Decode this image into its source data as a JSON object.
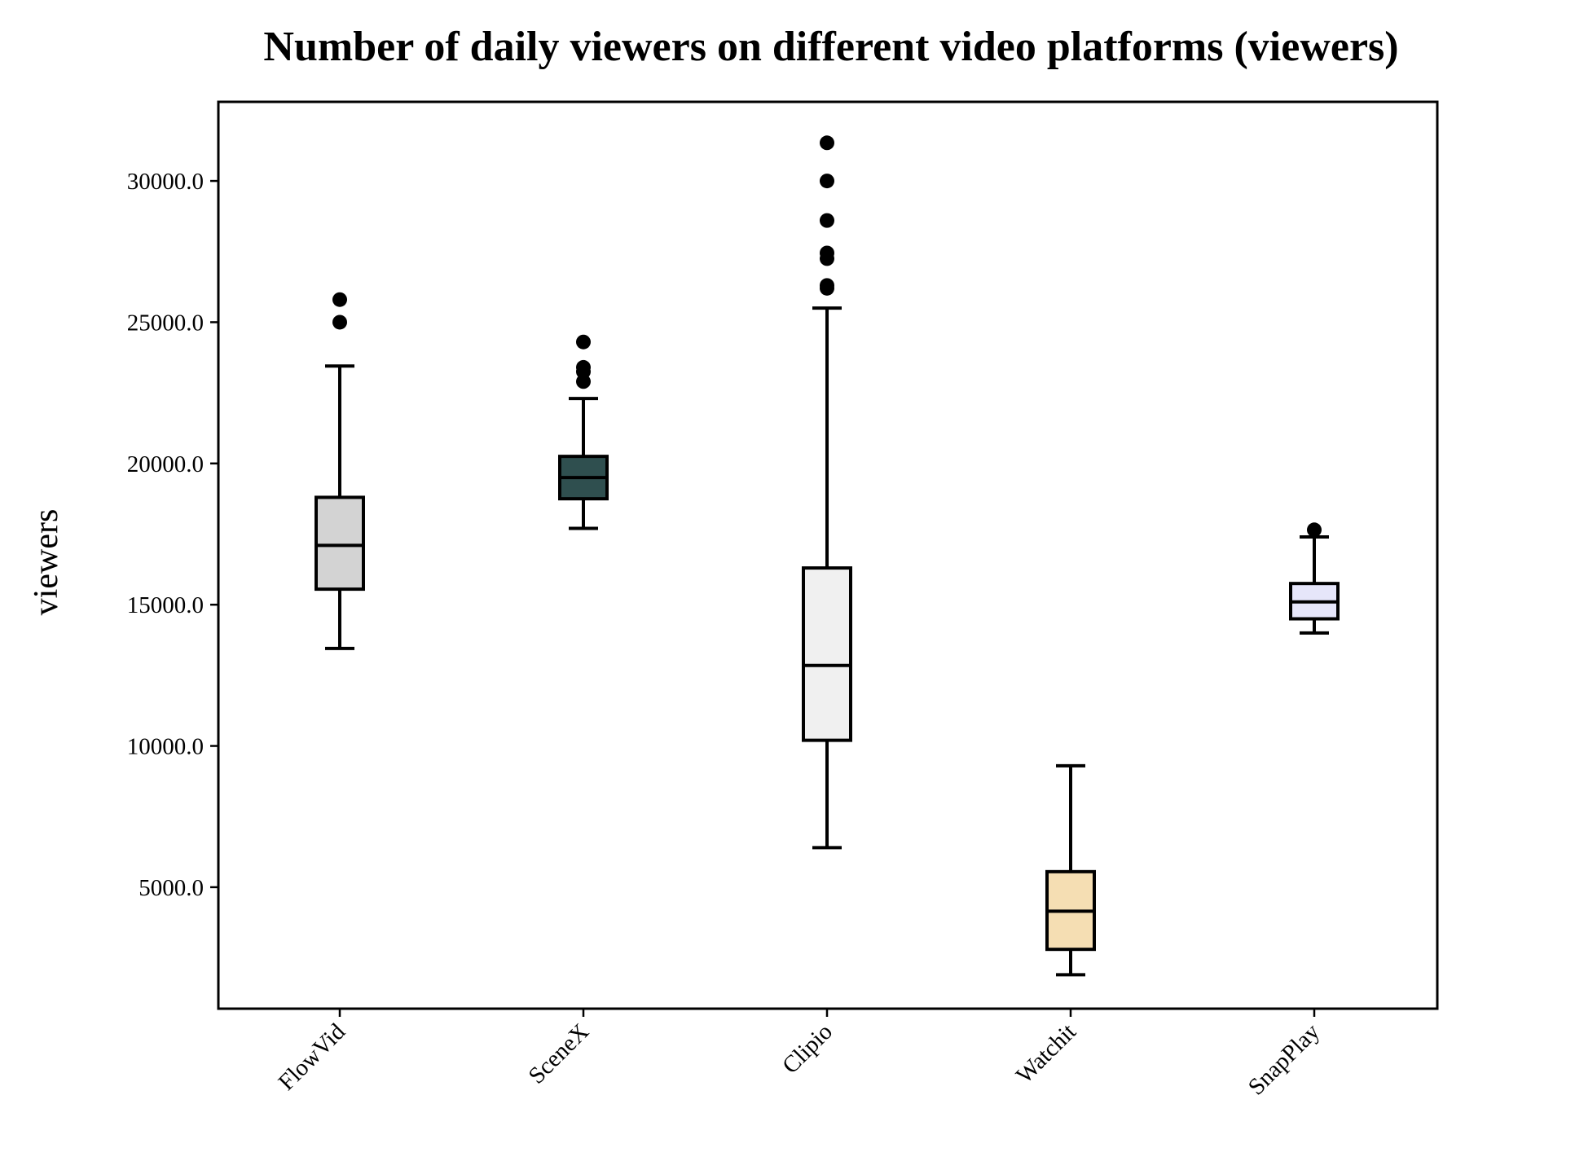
{
  "chart_data": {
    "type": "box",
    "title": "Number of daily viewers on different video platforms (viewers)",
    "xlabel": "",
    "ylabel": "viewers",
    "ylim": [
      700,
      32800
    ],
    "yticks": [
      5000,
      10000,
      15000,
      20000,
      25000,
      30000
    ],
    "ytick_labels": [
      "5000.0",
      "10000.0",
      "15000.0",
      "20000.0",
      "25000.0",
      "30000.0"
    ],
    "grid": false,
    "categories": [
      "FlowVid",
      "SceneX",
      "Clipio",
      "Watchit",
      "SnapPlay"
    ],
    "boxes": [
      {
        "name": "FlowVid",
        "color": "#d3d3d3",
        "whisker_low": 13450,
        "q1": 15550,
        "median": 17100,
        "q3": 18800,
        "whisker_high": 23450,
        "outliers": [
          25000,
          25800
        ]
      },
      {
        "name": "SceneX",
        "color": "#2f4f4f",
        "whisker_low": 17700,
        "q1": 18750,
        "median": 19500,
        "q3": 20250,
        "whisker_high": 22300,
        "outliers": [
          22900,
          23250,
          23400,
          24300
        ]
      },
      {
        "name": "Clipio",
        "color": "#f0f0f0",
        "whisker_low": 6400,
        "q1": 10200,
        "median": 12850,
        "q3": 16300,
        "whisker_high": 25500,
        "outliers": [
          26200,
          26300,
          27250,
          27450,
          28600,
          30000,
          31350
        ]
      },
      {
        "name": "Watchit",
        "color": "#f5deb3",
        "whisker_low": 1900,
        "q1": 2800,
        "median": 4150,
        "q3": 5550,
        "whisker_high": 9300,
        "outliers": []
      },
      {
        "name": "SnapPlay",
        "color": "#e6e6fa",
        "whisker_low": 14000,
        "q1": 14500,
        "median": 15100,
        "q3": 15750,
        "whisker_high": 17400,
        "outliers": [
          17650
        ]
      }
    ]
  }
}
